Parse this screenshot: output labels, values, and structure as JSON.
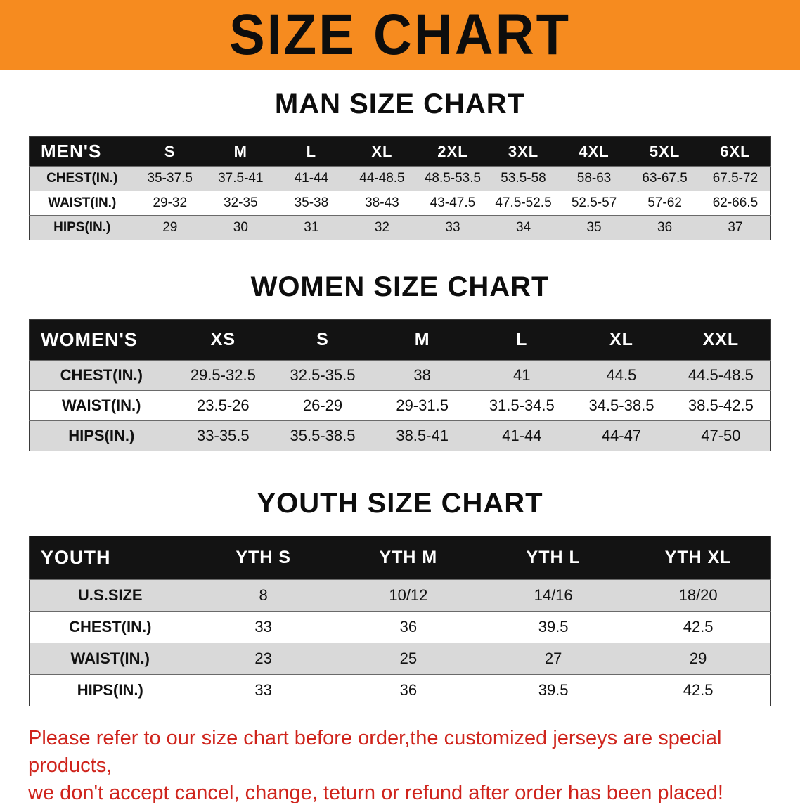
{
  "banner": {
    "title": "SIZE CHART"
  },
  "colors": {
    "banner_bg": "#f68b1f",
    "header_band": "#131313",
    "row_shade": "#d9d9d9",
    "footer_text": "#cf241c",
    "text": "#111111"
  },
  "sections": [
    {
      "heading": "MAN SIZE CHART",
      "table": {
        "label": "MEN'S",
        "columns": [
          "S",
          "M",
          "L",
          "XL",
          "2XL",
          "3XL",
          "4XL",
          "5XL",
          "6XL"
        ],
        "rows": [
          {
            "label": "CHEST(IN.)",
            "values": [
              "35-37.5",
              "37.5-41",
              "41-44",
              "44-48.5",
              "48.5-53.5",
              "53.5-58",
              "58-63",
              "63-67.5",
              "67.5-72"
            ]
          },
          {
            "label": "WAIST(IN.)",
            "values": [
              "29-32",
              "32-35",
              "35-38",
              "38-43",
              "43-47.5",
              "47.5-52.5",
              "52.5-57",
              "57-62",
              "62-66.5"
            ]
          },
          {
            "label": "HIPS(IN.)",
            "values": [
              "29",
              "30",
              "31",
              "32",
              "33",
              "34",
              "35",
              "36",
              "37"
            ]
          }
        ]
      }
    },
    {
      "heading": "WOMEN SIZE CHART",
      "table": {
        "label": "WOMEN'S",
        "columns": [
          "XS",
          "S",
          "M",
          "L",
          "XL",
          "XXL"
        ],
        "rows": [
          {
            "label": "CHEST(IN.)",
            "values": [
              "29.5-32.5",
              "32.5-35.5",
              "38",
              "41",
              "44.5",
              "44.5-48.5"
            ]
          },
          {
            "label": "WAIST(IN.)",
            "values": [
              "23.5-26",
              "26-29",
              "29-31.5",
              "31.5-34.5",
              "34.5-38.5",
              "38.5-42.5"
            ]
          },
          {
            "label": "HIPS(IN.)",
            "values": [
              "33-35.5",
              "35.5-38.5",
              "38.5-41",
              "41-44",
              "44-47",
              "47-50"
            ]
          }
        ]
      }
    },
    {
      "heading": "YOUTH SIZE CHART",
      "table": {
        "label": "YOUTH",
        "columns": [
          "YTH S",
          "YTH M",
          "YTH L",
          "YTH XL"
        ],
        "rows": [
          {
            "label": "U.S.SIZE",
            "values": [
              "8",
              "10/12",
              "14/16",
              "18/20"
            ]
          },
          {
            "label": "CHEST(IN.)",
            "values": [
              "33",
              "36",
              "39.5",
              "42.5"
            ]
          },
          {
            "label": "WAIST(IN.)",
            "values": [
              "23",
              "25",
              "27",
              "29"
            ]
          },
          {
            "label": "HIPS(IN.)",
            "values": [
              "33",
              "36",
              "39.5",
              "42.5"
            ]
          }
        ]
      }
    }
  ],
  "footer": {
    "line1": "Please refer to our size chart before order,the customized jerseys are special products,",
    "line2": "we don't accept cancel, change, teturn or refund after order has been placed!"
  }
}
